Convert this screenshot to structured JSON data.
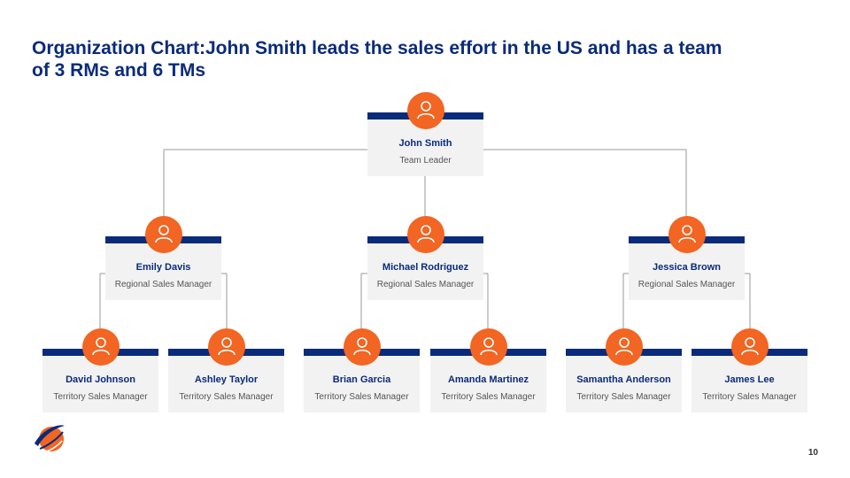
{
  "title": "Organization Chart:John Smith leads the sales effort in the US and has a team of 3 RMs and 6 TMs",
  "page_number": "10",
  "colors": {
    "navy": "#0a2b7a",
    "orange": "#f26522",
    "card": "#f2f2f2",
    "line": "#9a9a9a"
  },
  "icons": {
    "avatar": "person-icon",
    "logo": "company-logo-icon"
  },
  "leader": {
    "name": "John Smith",
    "role": "Team Leader"
  },
  "regional_managers": [
    {
      "name": "Emily Davis",
      "role": "Regional Sales Manager"
    },
    {
      "name": "Michael Rodriguez",
      "role": "Regional Sales Manager"
    },
    {
      "name": "Jessica Brown",
      "role": "Regional Sales Manager"
    }
  ],
  "territory_managers": [
    {
      "name": "David Johnson",
      "role": "Territory Sales Manager"
    },
    {
      "name": "Ashley Taylor",
      "role": "Territory Sales Manager"
    },
    {
      "name": "Brian Garcia",
      "role": "Territory Sales Manager"
    },
    {
      "name": "Amanda Martinez",
      "role": "Territory Sales Manager"
    },
    {
      "name": "Samantha Anderson",
      "role": "Territory Sales Manager"
    },
    {
      "name": "James Lee",
      "role": "Territory Sales Manager"
    }
  ]
}
